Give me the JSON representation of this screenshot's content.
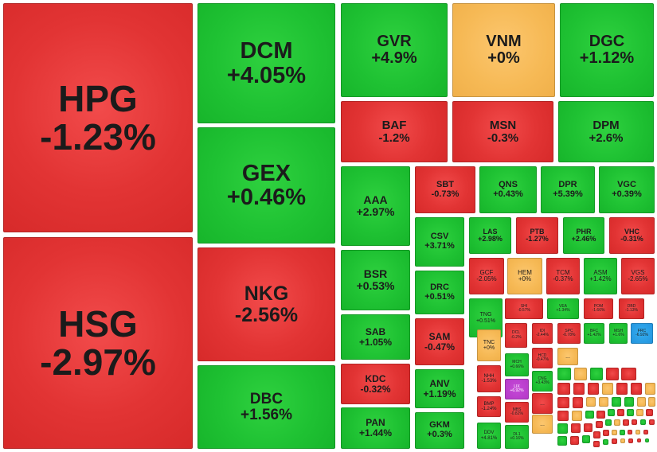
{
  "treemap": {
    "colors": {
      "negative": "#e23434",
      "positive": "#1fc233",
      "unchanged": "#f6b955",
      "ceiling": "#b438c7",
      "floor": "#2294de"
    },
    "tiles": [
      {
        "symbol": "HPG",
        "change": "-1.23%",
        "tone": "neg"
      },
      {
        "symbol": "HSG",
        "change": "-2.97%",
        "tone": "neg"
      },
      {
        "symbol": "DCM",
        "change": "+4.05%",
        "tone": "pos"
      },
      {
        "symbol": "GEX",
        "change": "+0.46%",
        "tone": "pos"
      },
      {
        "symbol": "NKG",
        "change": "-2.56%",
        "tone": "neg"
      },
      {
        "symbol": "DBC",
        "change": "+1.56%",
        "tone": "pos"
      },
      {
        "symbol": "GVR",
        "change": "+4.9%",
        "tone": "pos"
      },
      {
        "symbol": "VNM",
        "change": "+0%",
        "tone": "zero"
      },
      {
        "symbol": "DGC",
        "change": "+1.12%",
        "tone": "pos"
      },
      {
        "symbol": "BAF",
        "change": "-1.2%",
        "tone": "neg"
      },
      {
        "symbol": "MSN",
        "change": "-0.3%",
        "tone": "neg"
      },
      {
        "symbol": "DPM",
        "change": "+2.6%",
        "tone": "pos"
      },
      {
        "symbol": "AAA",
        "change": "+2.97%",
        "tone": "pos"
      },
      {
        "symbol": "SBT",
        "change": "-0.73%",
        "tone": "neg"
      },
      {
        "symbol": "QNS",
        "change": "+0.43%",
        "tone": "pos"
      },
      {
        "symbol": "DPR",
        "change": "+5.39%",
        "tone": "pos"
      },
      {
        "symbol": "VGC",
        "change": "+0.39%",
        "tone": "pos"
      },
      {
        "symbol": "CSV",
        "change": "+3.71%",
        "tone": "pos"
      },
      {
        "symbol": "LAS",
        "change": "+2.98%",
        "tone": "pos"
      },
      {
        "symbol": "PTB",
        "change": "-1.27%",
        "tone": "neg"
      },
      {
        "symbol": "PHR",
        "change": "+2.46%",
        "tone": "pos"
      },
      {
        "symbol": "VHC",
        "change": "-0.31%",
        "tone": "neg"
      },
      {
        "symbol": "BSR",
        "change": "+0.53%",
        "tone": "pos"
      },
      {
        "symbol": "DRC",
        "change": "+0.51%",
        "tone": "pos"
      },
      {
        "symbol": "GCF",
        "change": "-2.05%",
        "tone": "neg"
      },
      {
        "symbol": "HEM",
        "change": "+0%",
        "tone": "zero"
      },
      {
        "symbol": "TCM",
        "change": "-0.37%",
        "tone": "neg"
      },
      {
        "symbol": "ASM",
        "change": "+1.42%",
        "tone": "pos"
      },
      {
        "symbol": "VGS",
        "change": "-2.65%",
        "tone": "neg"
      },
      {
        "symbol": "TNG",
        "change": "+0.51%",
        "tone": "pos"
      },
      {
        "symbol": "SHI",
        "change": "-0.57%",
        "tone": "neg"
      },
      {
        "symbol": "VEA",
        "change": "+1.34%",
        "tone": "pos"
      },
      {
        "symbol": "POM",
        "change": "-1.66%",
        "tone": "neg"
      },
      {
        "symbol": "DBD",
        "change": "-1.13%",
        "tone": "neg"
      },
      {
        "symbol": "SAB",
        "change": "+1.05%",
        "tone": "pos"
      },
      {
        "symbol": "SAM",
        "change": "-0.47%",
        "tone": "neg"
      },
      {
        "symbol": "TNC",
        "change": "+0%",
        "tone": "zero"
      },
      {
        "symbol": "DCL",
        "change": "-0.2%",
        "tone": "neg"
      },
      {
        "symbol": "IDI",
        "change": "-2.44%",
        "tone": "neg"
      },
      {
        "symbol": "SPC",
        "change": "-0.78%",
        "tone": "neg"
      },
      {
        "symbol": "BFC",
        "change": "+1.42%",
        "tone": "pos"
      },
      {
        "symbol": "MSH",
        "change": "+1.6%",
        "tone": "pos"
      },
      {
        "symbol": "FRC",
        "change": "-6.92%",
        "tone": "floor"
      },
      {
        "symbol": "KDC",
        "change": "-0.32%",
        "tone": "neg"
      },
      {
        "symbol": "ANV",
        "change": "+1.19%",
        "tone": "pos"
      },
      {
        "symbol": "MCH",
        "change": "+0.66%",
        "tone": "pos"
      },
      {
        "symbol": "HCD",
        "change": "-0.47%",
        "tone": "neg"
      },
      {
        "symbol": "NHH",
        "change": "-1.53%",
        "tone": "neg"
      },
      {
        "symbol": "LIX",
        "change": "+6.92%",
        "tone": "ceil"
      },
      {
        "symbol": "CNG",
        "change": "+3.43%",
        "tone": "pos"
      },
      {
        "symbol": "BMP",
        "change": "-1.24%",
        "tone": "neg"
      },
      {
        "symbol": "MBS",
        "change": "-0.82%",
        "tone": "neg"
      },
      {
        "symbol": "PAN",
        "change": "+1.44%",
        "tone": "pos"
      },
      {
        "symbol": "GKM",
        "change": "+0.3%",
        "tone": "pos"
      },
      {
        "symbol": "DDV",
        "change": "+4.81%",
        "tone": "pos"
      },
      {
        "symbol": "DL1",
        "change": "+0.16%",
        "tone": "pos"
      }
    ],
    "small_tile_text": "..."
  }
}
